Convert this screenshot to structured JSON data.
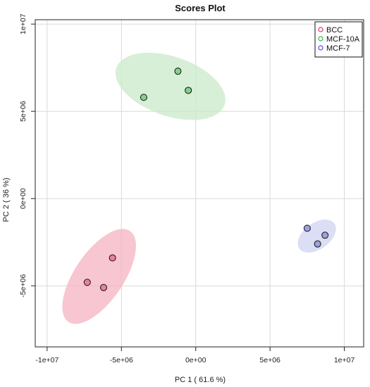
{
  "chart_data": {
    "type": "scatter",
    "title": "Scores Plot",
    "xlabel": "PC 1 ( 61.6 %)",
    "ylabel": "PC 2 ( 36 %)",
    "xlim": [
      -10800000,
      11300000
    ],
    "ylim": [
      -8500000,
      10250000
    ],
    "x_ticks": [
      {
        "value": -10000000,
        "label": "-1e+07"
      },
      {
        "value": -5000000,
        "label": "-5e+06"
      },
      {
        "value": 0,
        "label": "0e+00"
      },
      {
        "value": 5000000,
        "label": "5e+06"
      },
      {
        "value": 10000000,
        "label": "1e+07"
      }
    ],
    "y_ticks": [
      {
        "value": -5000000,
        "label": "-5e+06"
      },
      {
        "value": 0,
        "label": "0e+00"
      },
      {
        "value": 5000000,
        "label": "5e+06"
      },
      {
        "value": 10000000,
        "label": "1e+07"
      }
    ],
    "grid": true,
    "legend_position": "top-right",
    "series": [
      {
        "name": "BCC",
        "marker_color": "#d93a5a",
        "fill_color": "#e98296",
        "ellipse_color": "#f4b3c0",
        "points": [
          [
            -5600000,
            -3400000
          ],
          [
            -7300000,
            -4800000
          ],
          [
            -6200000,
            -5100000
          ]
        ],
        "ellipse": {
          "cx": -6500000,
          "cy": -4460000,
          "rx": 3700000,
          "ry": 1400000,
          "angle_deg": -56
        }
      },
      {
        "name": "MCF-10A",
        "marker_color": "#36b24c",
        "fill_color": "#86cf8e",
        "ellipse_color": "#c9eac9",
        "points": [
          [
            -3500000,
            5800000
          ],
          [
            -1200000,
            7300000
          ],
          [
            -500000,
            6200000
          ]
        ],
        "ellipse": {
          "cx": -1700000,
          "cy": 6430000,
          "rx": 3850000,
          "ry": 1700000,
          "angle_deg": 19
        }
      },
      {
        "name": "MCF-7",
        "marker_color": "#4b57c9",
        "fill_color": "#9aa3de",
        "ellipse_color": "#cfd3f0",
        "points": [
          [
            7500000,
            -1700000
          ],
          [
            8200000,
            -2600000
          ],
          [
            8700000,
            -2100000
          ]
        ],
        "ellipse": {
          "cx": 8150000,
          "cy": -2150000,
          "rx": 1450000,
          "ry": 750000,
          "angle_deg": -36
        }
      }
    ]
  }
}
